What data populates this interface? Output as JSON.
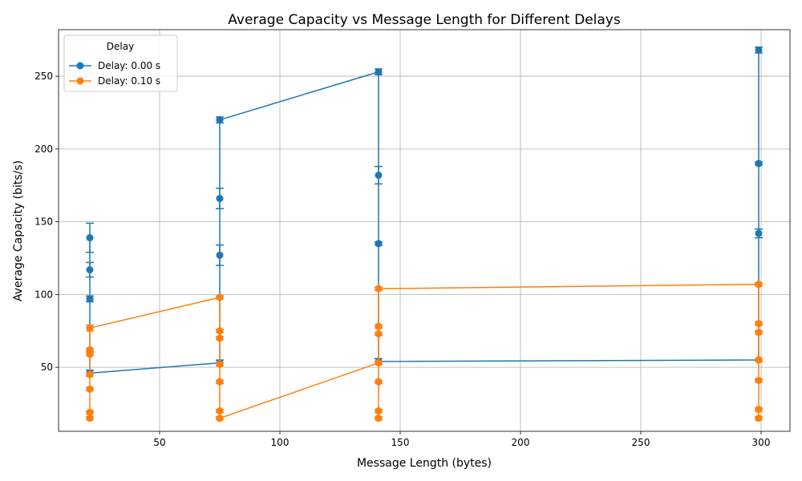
{
  "chart_data": {
    "type": "line",
    "title": "Average Capacity vs Message Length for Different Delays",
    "xlabel": "Message Length (bytes)",
    "ylabel": "Average Capacity (bits/s)",
    "xlim": [
      8,
      312
    ],
    "ylim": [
      6,
      282
    ],
    "xticks": [
      50,
      100,
      150,
      200,
      250,
      300
    ],
    "yticks": [
      50,
      100,
      150,
      200,
      250
    ],
    "grid": true,
    "legend": {
      "title": "Delay",
      "placement": "top-left"
    },
    "series": [
      {
        "name": "Delay: 0.00 s",
        "color": "#1f77b4",
        "x": [
          21,
          21,
          21,
          21,
          75,
          75,
          75,
          75,
          141,
          141,
          141,
          141,
          299,
          299,
          299,
          299
        ],
        "y": [
          139,
          117,
          97,
          46,
          53,
          127,
          166,
          220,
          253,
          182,
          135,
          54,
          55,
          142,
          190,
          268
        ],
        "yerr": [
          10,
          5,
          2,
          2,
          2,
          7,
          7,
          2,
          2,
          6,
          1,
          2,
          1,
          3,
          1,
          2
        ]
      },
      {
        "name": "Delay: 0.10 s",
        "color": "#ff7f0e",
        "x": [
          21,
          21,
          21,
          21,
          21,
          21,
          21,
          75,
          75,
          75,
          75,
          75,
          75,
          75,
          141,
          141,
          141,
          141,
          141,
          141,
          141,
          299,
          299,
          299,
          299,
          299,
          299,
          299
        ],
        "y": [
          15,
          19,
          35,
          45,
          59,
          62,
          77,
          98,
          75,
          70,
          52,
          40,
          20,
          15,
          53,
          40,
          20,
          15,
          73,
          78,
          104,
          107,
          80,
          74,
          55,
          41,
          21,
          15
        ],
        "yerr": [
          1,
          1,
          1,
          1,
          1,
          1,
          2,
          1,
          1,
          1,
          1,
          1,
          1,
          1,
          1,
          1,
          1,
          1,
          1,
          1,
          1,
          1,
          1,
          1,
          1,
          1,
          1,
          1
        ]
      }
    ]
  }
}
